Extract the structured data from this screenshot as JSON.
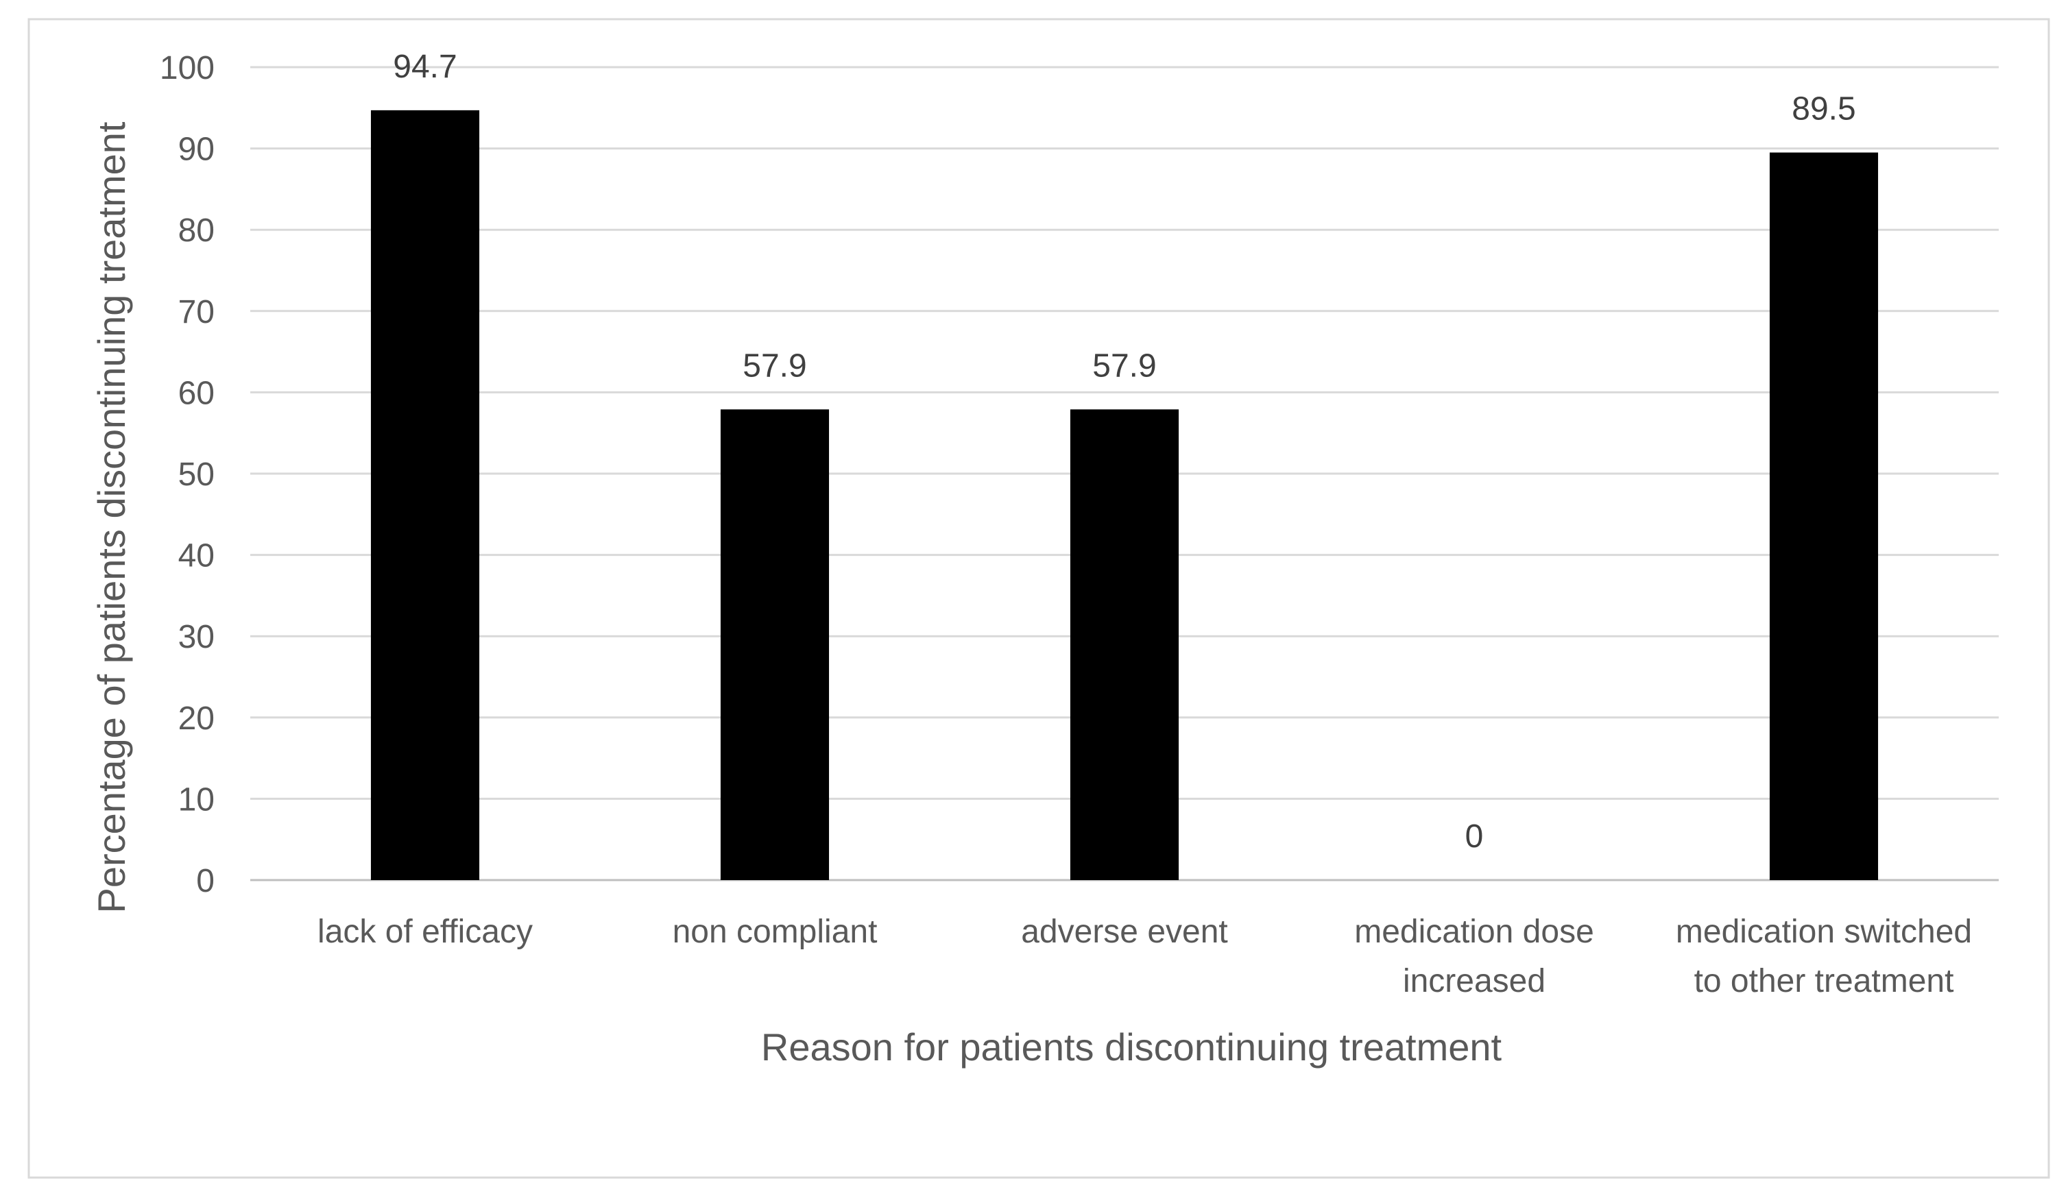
{
  "chart_data": {
    "type": "bar",
    "title": "",
    "xlabel": "Reason for patients discontinuing treatment",
    "ylabel": "Percentage of patients discontinuing treatment",
    "categories": [
      [
        "lack of efficacy"
      ],
      [
        "non compliant"
      ],
      [
        "adverse event"
      ],
      [
        "medication dose",
        "increased"
      ],
      [
        "medication switched",
        "to other treatment"
      ]
    ],
    "values": [
      94.7,
      57.9,
      57.9,
      0,
      89.5
    ],
    "value_labels": [
      "94.7",
      "57.9",
      "57.9",
      "0",
      "89.5"
    ],
    "ylim": [
      0,
      100
    ],
    "yticks": [
      "0",
      "10",
      "20",
      "30",
      "40",
      "50",
      "60",
      "70",
      "80",
      "90",
      "100"
    ],
    "grid": true,
    "legend": "none",
    "bar_color": "#000000"
  }
}
